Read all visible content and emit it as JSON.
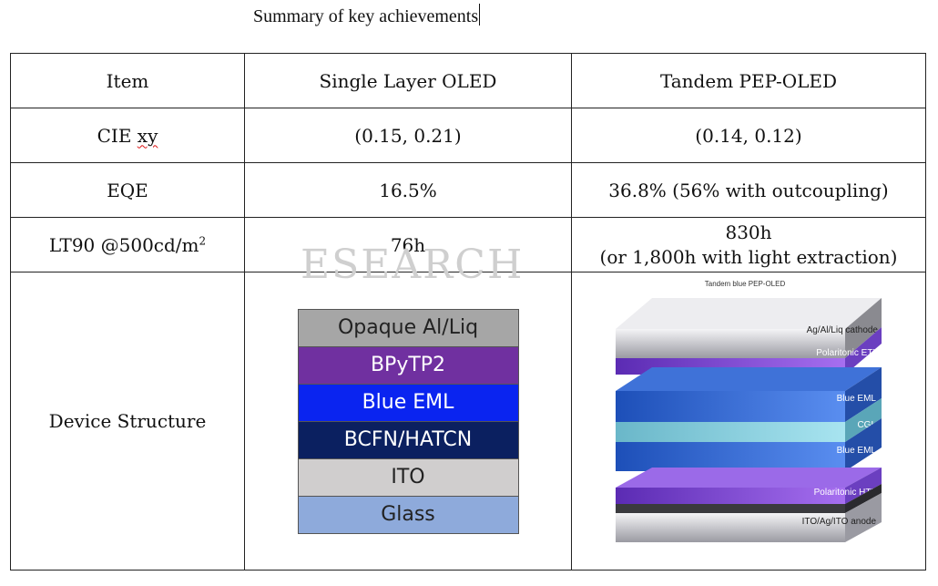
{
  "document": {
    "title": "Summary of key achievements"
  },
  "table": {
    "headers": [
      "Item",
      "Single Layer OLED",
      "Tandem PEP-OLED"
    ],
    "rows": [
      {
        "item": "CIE xy",
        "single": "(0.15, 0.21)",
        "tandem": "(0.14, 0.12)"
      },
      {
        "item": "EQE",
        "single": "16.5%",
        "tandem": "36.8% (56% with outcoupling)"
      },
      {
        "item": "LT90 @500cd/m",
        "item_sup": "2",
        "single": "76h",
        "tandem_line1": "830h",
        "tandem_line2": "(or 1,800h with light extraction)"
      },
      {
        "item": "Device Structure"
      }
    ]
  },
  "single_layer_stack": [
    {
      "label": "Opaque Al/Liq",
      "color": "#a6a6a6",
      "text_color": "#222222"
    },
    {
      "label": "BPyTP2",
      "color": "#7030a0",
      "text_color": "#ffffff"
    },
    {
      "label": "Blue EML",
      "color": "#0a24f0",
      "text_color": "#ffffff"
    },
    {
      "label": "BCFN/HATCN",
      "color": "#0b2060",
      "text_color": "#ffffff"
    },
    {
      "label": "ITO",
      "color": "#d0cece",
      "text_color": "#222222"
    },
    {
      "label": "Glass",
      "color": "#8eaadb",
      "text_color": "#222222"
    }
  ],
  "tandem_diagram": {
    "title": "Tandem blue PEP-OLED",
    "labels": {
      "cathode": "Ag/Al/Liq cathode",
      "etl": "Polaritonic ETL",
      "eml_top": "Blue EML",
      "cgl": "CGL",
      "eml_bottom": "Blue EML",
      "htl": "Polaritonic HTL",
      "anode": "ITO/Ag/ITO anode"
    }
  },
  "watermark": "ESEARCH"
}
